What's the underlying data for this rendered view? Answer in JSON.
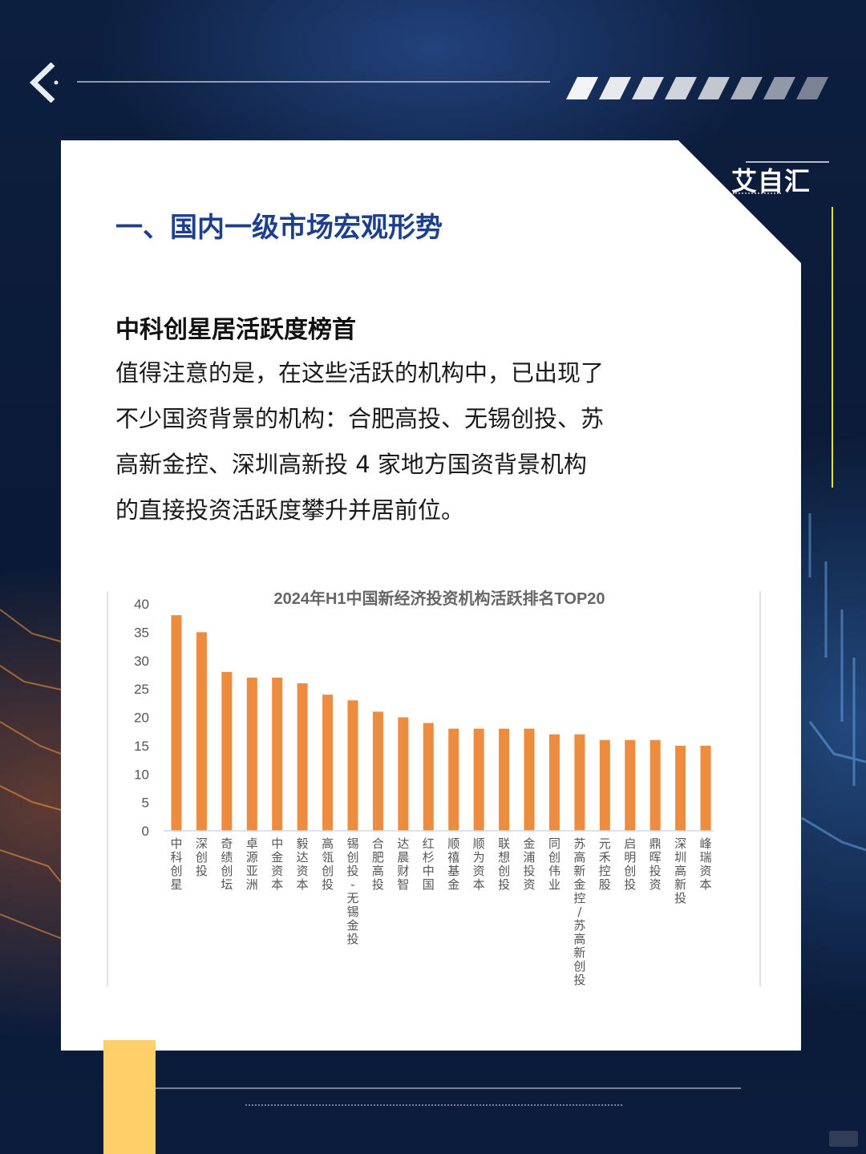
{
  "brand": {
    "name": "艾自汇"
  },
  "section_title": "一、国内一级市场宏观形势",
  "subtitle": "中科创星居活跃度榜首",
  "body": {
    "lines": [
      "值得注意的是，在这些活跃的机构中，已出现了",
      "不少国资背景的机构：合肥高投、无锡创投、苏",
      "高新金控、深圳高新投 4 家地方国资背景机构",
      "的直接投资活跃度攀升并居前位。"
    ]
  },
  "colors": {
    "bar": "#ed8b3f",
    "title_blue": "#1d3f8f",
    "accent_yellow": "#ffcf6a",
    "bg_navy": "#0d1f3f"
  },
  "chart_data": {
    "type": "bar",
    "title": "2024年H1中国新经济投资机构活跃排名TOP20",
    "xlabel": "",
    "ylabel": "",
    "ylim": [
      0,
      40
    ],
    "yticks": [
      0,
      5,
      10,
      15,
      20,
      25,
      30,
      35,
      40
    ],
    "grid": false,
    "legend": "none",
    "categories": [
      "中科创星",
      "深创投",
      "奇绩创坛",
      "卓源亚洲",
      "中金资本",
      "毅达资本",
      "高瓴创投",
      "锡创投-无锡金投",
      "合肥高投",
      "达晨财智",
      "红杉中国",
      "顺禧基金",
      "顺为资本",
      "联想创投",
      "金浦投资",
      "同创伟业",
      "苏高新金控/苏高新创投",
      "元禾控股",
      "启明创投",
      "鼎晖投资",
      "深圳高新投",
      "峰瑞资本"
    ],
    "values": [
      38,
      35,
      28,
      27,
      27,
      26,
      24,
      23,
      21,
      20,
      19,
      18,
      18,
      18,
      18,
      17,
      17,
      16,
      16,
      16,
      15,
      15
    ]
  }
}
